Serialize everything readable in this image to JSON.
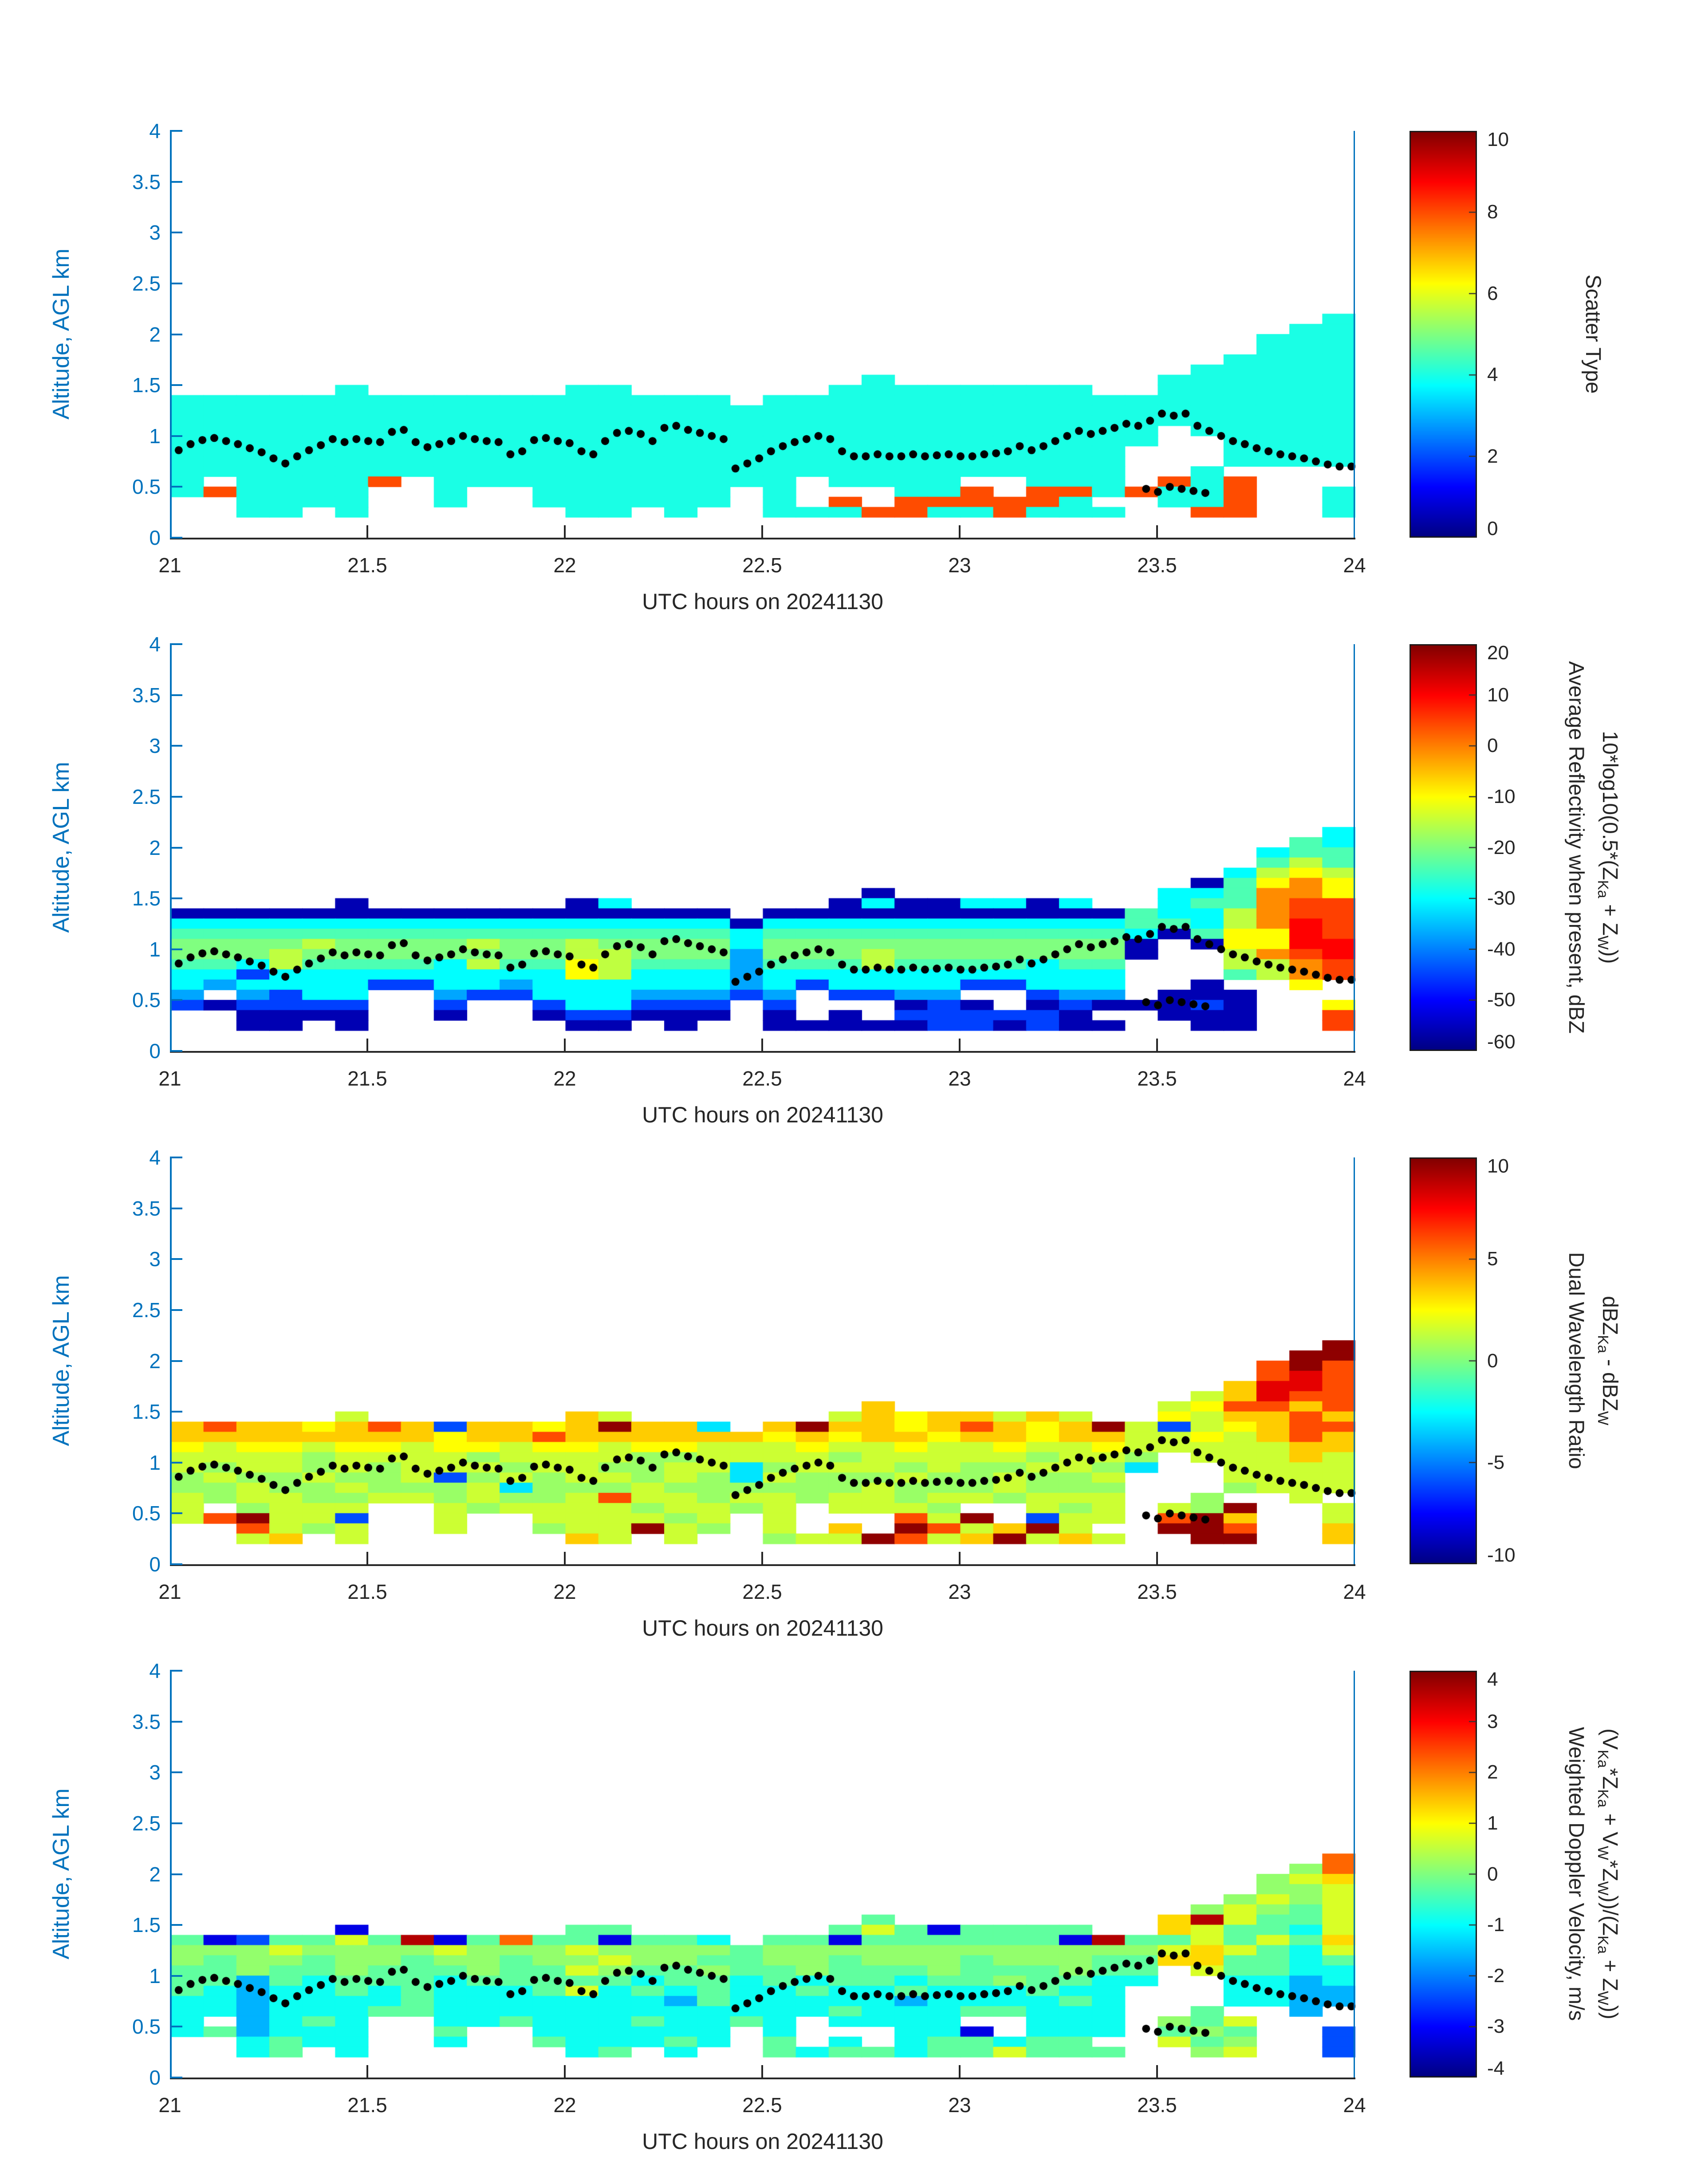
{
  "chart_data": {
    "type": "heatmap",
    "layout_note": "four stacked time-height radar panels, jet colormap, white background",
    "shared": {
      "xlabel": "UTC hours on 20241130",
      "ylabel": "Altitude, AGL km",
      "xlim": [
        21,
        24
      ],
      "ylim": [
        0,
        4
      ],
      "x_ticks": [
        21,
        21.5,
        22,
        22.5,
        23,
        23.5,
        24
      ],
      "y_ticks": [
        0,
        0.5,
        1,
        1.5,
        2,
        2.5,
        3,
        3.5,
        4
      ],
      "grid_t0_hours": 21,
      "grid_dt_hours": 0.083333,
      "grid_z_top_km": 2.4,
      "grid_dz_km": 0.1,
      "colors": {
        "y_axis": "#0072BD",
        "x_axis": "#262626",
        "dots": "#000000",
        "colorbar_border": "#1a1a1a"
      },
      "track": [
        [
          21.02,
          0.86
        ],
        [
          21.05,
          0.92
        ],
        [
          21.08,
          0.96
        ],
        [
          21.11,
          0.98
        ],
        [
          21.14,
          0.95
        ],
        [
          21.17,
          0.92
        ],
        [
          21.2,
          0.88
        ],
        [
          21.23,
          0.84
        ],
        [
          21.26,
          0.78
        ],
        [
          21.29,
          0.73
        ],
        [
          21.32,
          0.8
        ],
        [
          21.35,
          0.86
        ],
        [
          21.38,
          0.91
        ],
        [
          21.41,
          0.97
        ],
        [
          21.44,
          0.94
        ],
        [
          21.47,
          0.97
        ],
        [
          21.5,
          0.95
        ],
        [
          21.53,
          0.94
        ],
        [
          21.56,
          1.04
        ],
        [
          21.59,
          1.06
        ],
        [
          21.62,
          0.94
        ],
        [
          21.65,
          0.89
        ],
        [
          21.68,
          0.92
        ],
        [
          21.71,
          0.95
        ],
        [
          21.74,
          1.0
        ],
        [
          21.77,
          0.97
        ],
        [
          21.8,
          0.95
        ],
        [
          21.83,
          0.94
        ],
        [
          21.86,
          0.82
        ],
        [
          21.89,
          0.85
        ],
        [
          21.92,
          0.96
        ],
        [
          21.95,
          0.98
        ],
        [
          21.98,
          0.95
        ],
        [
          22.01,
          0.93
        ],
        [
          22.04,
          0.85
        ],
        [
          22.07,
          0.82
        ],
        [
          22.1,
          0.95
        ],
        [
          22.13,
          1.03
        ],
        [
          22.16,
          1.05
        ],
        [
          22.19,
          1.02
        ],
        [
          22.22,
          0.95
        ],
        [
          22.25,
          1.08
        ],
        [
          22.28,
          1.1
        ],
        [
          22.31,
          1.06
        ],
        [
          22.34,
          1.03
        ],
        [
          22.37,
          1.0
        ],
        [
          22.4,
          0.97
        ],
        [
          22.43,
          0.68
        ],
        [
          22.46,
          0.73
        ],
        [
          22.49,
          0.78
        ],
        [
          22.52,
          0.85
        ],
        [
          22.55,
          0.9
        ],
        [
          22.58,
          0.94
        ],
        [
          22.61,
          0.97
        ],
        [
          22.64,
          1.0
        ],
        [
          22.67,
          0.97
        ],
        [
          22.7,
          0.85
        ],
        [
          22.73,
          0.8
        ],
        [
          22.76,
          0.8
        ],
        [
          22.79,
          0.82
        ],
        [
          22.82,
          0.8
        ],
        [
          22.85,
          0.8
        ],
        [
          22.88,
          0.82
        ],
        [
          22.91,
          0.8
        ],
        [
          22.94,
          0.81
        ],
        [
          22.97,
          0.82
        ],
        [
          23.0,
          0.8
        ],
        [
          23.03,
          0.8
        ],
        [
          23.06,
          0.82
        ],
        [
          23.09,
          0.83
        ],
        [
          23.12,
          0.85
        ],
        [
          23.15,
          0.9
        ],
        [
          23.18,
          0.86
        ],
        [
          23.21,
          0.9
        ],
        [
          23.24,
          0.95
        ],
        [
          23.27,
          1.0
        ],
        [
          23.3,
          1.05
        ],
        [
          23.33,
          1.02
        ],
        [
          23.36,
          1.05
        ],
        [
          23.39,
          1.08
        ],
        [
          23.42,
          1.12
        ],
        [
          23.45,
          1.1
        ],
        [
          23.48,
          1.15
        ],
        [
          23.51,
          1.22
        ],
        [
          23.54,
          1.2
        ],
        [
          23.57,
          1.22
        ],
        [
          23.6,
          1.1
        ],
        [
          23.63,
          1.05
        ],
        [
          23.66,
          1.0
        ],
        [
          23.69,
          0.95
        ],
        [
          23.72,
          0.92
        ],
        [
          23.75,
          0.88
        ],
        [
          23.78,
          0.85
        ],
        [
          23.81,
          0.82
        ],
        [
          23.84,
          0.8
        ],
        [
          23.87,
          0.78
        ],
        [
          23.9,
          0.75
        ],
        [
          23.93,
          0.72
        ],
        [
          23.96,
          0.7
        ],
        [
          23.99,
          0.7
        ]
      ],
      "track_low": [
        [
          23.47,
          0.48
        ],
        [
          23.5,
          0.45
        ],
        [
          23.53,
          0.5
        ],
        [
          23.56,
          0.48
        ],
        [
          23.59,
          0.46
        ],
        [
          23.62,
          0.44
        ]
      ]
    },
    "panels": [
      {
        "name": "scatter-type",
        "colorbar_label_lines": [
          "Scatter Type"
        ],
        "vmin": 0,
        "vmax": 10,
        "colorbar_ticks": [
          0,
          2,
          4,
          6,
          8,
          10
        ],
        "palette": {
          "c": 4,
          "r": 8
        },
        "rows": [
          "....................................",
          "....................................",
          "...................................c",
          "..................................cc",
          ".................................ccc",
          ".................................ccc",
          "................................cccc",
          "...............................ccccc",
          ".....................c........cccccc",
          ".....c......cc......cccccccc..cccccc",
          "ccccccccccccccccc.cccccccccccccccccc",
          "cccccccccccccccccccccccccccccccccccc",
          "cccccccccccccccccccccccccccccccccccc",
          "cccccccccccccccccccccccccccccc.ccccc",
          "cccccccccccccccccccccccccccccc..cccc",
          "ccccccccccccccccccccccccccccc...cccc",
          "ccccccccccccccccccccccccccccc...cccc",
          "ccccccccccccccccccccccccccccc..c....",
          "c.ccccr.ccccccccccc.cccc..ccc.rcr...",
          "crcccc..c..cccccc.c...ccr.rrcrccr..c",
          "..cccc..c..cccccc.c.r.rrrrrc..ccr..c",
          "..cc.c......cc.c..cccrrccrccc..rr..c",
          "....................................",
          "...................................."
        ]
      },
      {
        "name": "average-reflectivity",
        "colorbar_label_lines": [
          "Average Reflectivity when present, dBZ",
          "10*log10(0.5*(Z_{Ka} + Z_{W}))"
        ],
        "vmin": -60,
        "vmax": 20,
        "colorbar_ticks": [
          -60,
          -50,
          -40,
          -30,
          -20,
          -10,
          0,
          10,
          20
        ],
        "palette": {
          "n": -56,
          "b": -45,
          "B": -37,
          "c": -30,
          "g": -24,
          "G": -20,
          "y": -15,
          "Y": -10,
          "o": -5,
          "O": -1,
          "r": 5,
          "R": 10
        },
        "rows": [
          "....................................",
          "....................................",
          "...................................c",
          "..................................gc",
          ".................................cgg",
          ".................................gyg",
          "................................cyYy",
          "...............................ngYOY",
          ".....................n........ccgOOY",
          ".....n......nc......ncnnccnc..cggOrr",
          "nnnnnnnnnnnnnnnnn.nnnnnnnnnnngccyOrr",
          "cccccccccccccccccncccccccccccggcyORr",
          "gggggggggggggggggcgggggggggggcngYYRr",
          "GGGGyGGGGyGGyGGGGcGGGGGGGGGGGn.nYYRR",
          "GGGyGGGGGGGGyyGGGBGGGyGGGGGGGn..yOrR",
          "ggcyggggcyggYygggBgggyggggcgg...yyOr",
          "ccbcccccccccYycccBccccccccccc...gyOr",
          "cBccccbbccBccccccBcbccccbbccc..n..Y.",
          "B.Bbcc..BbbcccBBBbB.bbBB..bBB.nnn...",
          "bnbbbb..b..bccbbb.b...nbn.nbnnnbn..Y",
          "..nnnn..n..nbbnnn.n.n.bbbbbn..nnn..r",
          "..nn.n......nn.n..nnnnnbbnbnn..nn..r",
          "....................................",
          "...................................."
        ]
      },
      {
        "name": "dual-wavelength-ratio",
        "colorbar_label_lines": [
          "Dual Wavelength Ratio",
          "dBZ_{Ka} - dBZ_{W}"
        ],
        "vmin": -10,
        "vmax": 10,
        "colorbar_ticks": [
          -10,
          -5,
          0,
          5,
          10
        ],
        "palette": {
          "b": -6,
          "c": -3,
          "g": 0.5,
          "y": 1.5,
          "Y": 2.5,
          "o": 3.5,
          "r": 6,
          "R": 8,
          "D": 9.7
        },
        "rows": [
          "....................................",
          "....................................",
          "...................................D",
          "..................................DD",
          ".................................rDr",
          ".................................rRr",
          "................................oRRr",
          "...............................yoRrr",
          ".....................o........yYrror",
          ".....y......oy......yoYooyoy..Yyooro",
          "orooYorobooYoDooc.oDooYoroYoDybyYorr",
          "ooooooooYoorooooooYoYooYooYooyyYyoro",
          "YyYYyYYyYYyYYyYYyyyYyyYyyYyyYyyyyyoo",
          "yyyygyyyygyyyyggyyyygyyyyygyyg.yyyoy",
          "ygyygygyyygyyggyycgyyygyggyygc..yyyy",
          "gyggyggybgygyygygcygggyggyggy...yyyy",
          "ggyggygggycgggyggggggygggyggg...gyyy",
          "ygyyggyygyggyryygyygyygyygyyy..g..y.",
          "y.gyyy..ygyyyygyygy.yyyg..ygy.ygD..y",
          "yrDyyb..y..yyyygy.y...ryD.byy.rDo..y",
          "..rygy..y..gyyDyg.y.o.DryoDy..DDr..o",
          "..yo.y......oy.y..gyyDryoDyoy..DD..o",
          "....................................",
          "...................................."
        ]
      },
      {
        "name": "weighted-doppler-velocity",
        "colorbar_label_lines": [
          "Weighted Doppler Velocity, m/s",
          "(V_{Ka}*Z_{Ka} + V_{W}*Z_{W}))/(Z_{Ka} + Z_{W}))"
        ],
        "vmin": -4,
        "vmax": 4,
        "colorbar_ticks": [
          -4,
          -3,
          -2,
          -1,
          0,
          1,
          2,
          3,
          4
        ],
        "palette": {
          "N": -3.2,
          "b": -2.4,
          "C": -1.6,
          "c": -0.9,
          "g": -0.25,
          "G": 0.15,
          "y": 0.7,
          "Y": 1.3,
          "o": 2.2,
          "R": 3.6
        },
        "rows": [
          "....................................",
          "....................................",
          "...................................o",
          "..................................Go",
          ".................................GyY",
          ".................................GGy",
          "................................GyGy",
          "...............................GyGgy",
          ".....................g........YRyggy",
          ".....N......gg......gygNgggg..Yyggcy",
          "gNbggygRNgoggNggc.ggNggggggNRggygygY",
          "GGGyGGGGyGGGyGGGGgGGGGGGGGGGGGyYygcy",
          "GgGGgGGgGGgGGyGGggGGgGGGgGGGggYYggcg",
          "ggGggGgggGggyGggGggGgggGgggGgg.yggcc",
          "ggCgcgggcgggggcggcgcggcggGggcc..ccCc",
          "gcCccgcgcccgycgcgccgccgcccgcc...ccCC",
          "ccCccccgcccccccCgcccccCccccgc...ccCC",
          "ccCcccggccccccccccccgcccggccc..g..C.",
          "c.Ccgc..ccgcccgccgc.cccc..ccc.Ggy...",
          "cgCccc..g..cccccc.c...ccN.ccc.gGg..b",
          "..cgcc..c..gcccgc.g.c.cggcgg..ygG..b",
          "..cg.c......cg.c..gcggcggyggg..Gy..b",
          "....................................",
          "...................................."
        ]
      }
    ]
  }
}
